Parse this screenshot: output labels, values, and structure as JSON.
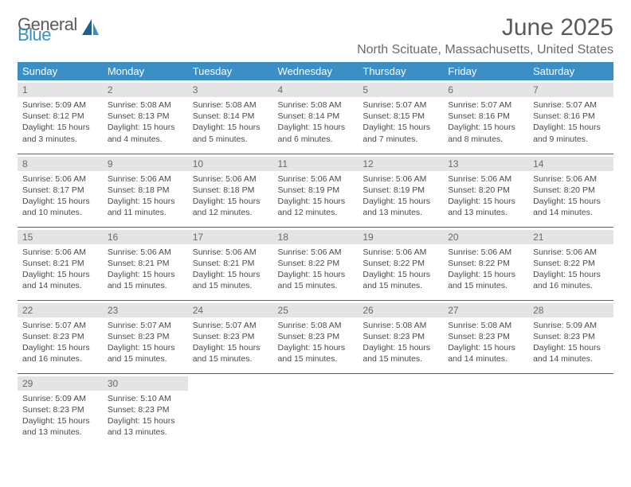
{
  "brand": {
    "word1": "General",
    "word2": "Blue"
  },
  "title": "June 2025",
  "location": "North Scituate, Massachusetts, United States",
  "colors": {
    "header_bg": "#3b8fc4",
    "header_text": "#ffffff",
    "row_divider": "#3b6a8f",
    "daynum_bg": "#e4e4e4",
    "body_text": "#4a4a4a",
    "title_text": "#5a5a5a",
    "logo_gray": "#5a5a5a",
    "logo_blue": "#3b8fc4"
  },
  "typography": {
    "title_fontsize": 30,
    "location_fontsize": 16,
    "dayheader_fontsize": 13,
    "daynum_fontsize": 12,
    "cell_fontsize": 10.5
  },
  "day_headers": [
    "Sunday",
    "Monday",
    "Tuesday",
    "Wednesday",
    "Thursday",
    "Friday",
    "Saturday"
  ],
  "weeks": [
    [
      {
        "n": "1",
        "sunrise": "Sunrise: 5:09 AM",
        "sunset": "Sunset: 8:12 PM",
        "daylight": "Daylight: 15 hours and 3 minutes."
      },
      {
        "n": "2",
        "sunrise": "Sunrise: 5:08 AM",
        "sunset": "Sunset: 8:13 PM",
        "daylight": "Daylight: 15 hours and 4 minutes."
      },
      {
        "n": "3",
        "sunrise": "Sunrise: 5:08 AM",
        "sunset": "Sunset: 8:14 PM",
        "daylight": "Daylight: 15 hours and 5 minutes."
      },
      {
        "n": "4",
        "sunrise": "Sunrise: 5:08 AM",
        "sunset": "Sunset: 8:14 PM",
        "daylight": "Daylight: 15 hours and 6 minutes."
      },
      {
        "n": "5",
        "sunrise": "Sunrise: 5:07 AM",
        "sunset": "Sunset: 8:15 PM",
        "daylight": "Daylight: 15 hours and 7 minutes."
      },
      {
        "n": "6",
        "sunrise": "Sunrise: 5:07 AM",
        "sunset": "Sunset: 8:16 PM",
        "daylight": "Daylight: 15 hours and 8 minutes."
      },
      {
        "n": "7",
        "sunrise": "Sunrise: 5:07 AM",
        "sunset": "Sunset: 8:16 PM",
        "daylight": "Daylight: 15 hours and 9 minutes."
      }
    ],
    [
      {
        "n": "8",
        "sunrise": "Sunrise: 5:06 AM",
        "sunset": "Sunset: 8:17 PM",
        "daylight": "Daylight: 15 hours and 10 minutes."
      },
      {
        "n": "9",
        "sunrise": "Sunrise: 5:06 AM",
        "sunset": "Sunset: 8:18 PM",
        "daylight": "Daylight: 15 hours and 11 minutes."
      },
      {
        "n": "10",
        "sunrise": "Sunrise: 5:06 AM",
        "sunset": "Sunset: 8:18 PM",
        "daylight": "Daylight: 15 hours and 12 minutes."
      },
      {
        "n": "11",
        "sunrise": "Sunrise: 5:06 AM",
        "sunset": "Sunset: 8:19 PM",
        "daylight": "Daylight: 15 hours and 12 minutes."
      },
      {
        "n": "12",
        "sunrise": "Sunrise: 5:06 AM",
        "sunset": "Sunset: 8:19 PM",
        "daylight": "Daylight: 15 hours and 13 minutes."
      },
      {
        "n": "13",
        "sunrise": "Sunrise: 5:06 AM",
        "sunset": "Sunset: 8:20 PM",
        "daylight": "Daylight: 15 hours and 13 minutes."
      },
      {
        "n": "14",
        "sunrise": "Sunrise: 5:06 AM",
        "sunset": "Sunset: 8:20 PM",
        "daylight": "Daylight: 15 hours and 14 minutes."
      }
    ],
    [
      {
        "n": "15",
        "sunrise": "Sunrise: 5:06 AM",
        "sunset": "Sunset: 8:21 PM",
        "daylight": "Daylight: 15 hours and 14 minutes."
      },
      {
        "n": "16",
        "sunrise": "Sunrise: 5:06 AM",
        "sunset": "Sunset: 8:21 PM",
        "daylight": "Daylight: 15 hours and 15 minutes."
      },
      {
        "n": "17",
        "sunrise": "Sunrise: 5:06 AM",
        "sunset": "Sunset: 8:21 PM",
        "daylight": "Daylight: 15 hours and 15 minutes."
      },
      {
        "n": "18",
        "sunrise": "Sunrise: 5:06 AM",
        "sunset": "Sunset: 8:22 PM",
        "daylight": "Daylight: 15 hours and 15 minutes."
      },
      {
        "n": "19",
        "sunrise": "Sunrise: 5:06 AM",
        "sunset": "Sunset: 8:22 PM",
        "daylight": "Daylight: 15 hours and 15 minutes."
      },
      {
        "n": "20",
        "sunrise": "Sunrise: 5:06 AM",
        "sunset": "Sunset: 8:22 PM",
        "daylight": "Daylight: 15 hours and 15 minutes."
      },
      {
        "n": "21",
        "sunrise": "Sunrise: 5:06 AM",
        "sunset": "Sunset: 8:22 PM",
        "daylight": "Daylight: 15 hours and 16 minutes."
      }
    ],
    [
      {
        "n": "22",
        "sunrise": "Sunrise: 5:07 AM",
        "sunset": "Sunset: 8:23 PM",
        "daylight": "Daylight: 15 hours and 16 minutes."
      },
      {
        "n": "23",
        "sunrise": "Sunrise: 5:07 AM",
        "sunset": "Sunset: 8:23 PM",
        "daylight": "Daylight: 15 hours and 15 minutes."
      },
      {
        "n": "24",
        "sunrise": "Sunrise: 5:07 AM",
        "sunset": "Sunset: 8:23 PM",
        "daylight": "Daylight: 15 hours and 15 minutes."
      },
      {
        "n": "25",
        "sunrise": "Sunrise: 5:08 AM",
        "sunset": "Sunset: 8:23 PM",
        "daylight": "Daylight: 15 hours and 15 minutes."
      },
      {
        "n": "26",
        "sunrise": "Sunrise: 5:08 AM",
        "sunset": "Sunset: 8:23 PM",
        "daylight": "Daylight: 15 hours and 15 minutes."
      },
      {
        "n": "27",
        "sunrise": "Sunrise: 5:08 AM",
        "sunset": "Sunset: 8:23 PM",
        "daylight": "Daylight: 15 hours and 14 minutes."
      },
      {
        "n": "28",
        "sunrise": "Sunrise: 5:09 AM",
        "sunset": "Sunset: 8:23 PM",
        "daylight": "Daylight: 15 hours and 14 minutes."
      }
    ],
    [
      {
        "n": "29",
        "sunrise": "Sunrise: 5:09 AM",
        "sunset": "Sunset: 8:23 PM",
        "daylight": "Daylight: 15 hours and 13 minutes."
      },
      {
        "n": "30",
        "sunrise": "Sunrise: 5:10 AM",
        "sunset": "Sunset: 8:23 PM",
        "daylight": "Daylight: 15 hours and 13 minutes."
      },
      null,
      null,
      null,
      null,
      null
    ]
  ]
}
